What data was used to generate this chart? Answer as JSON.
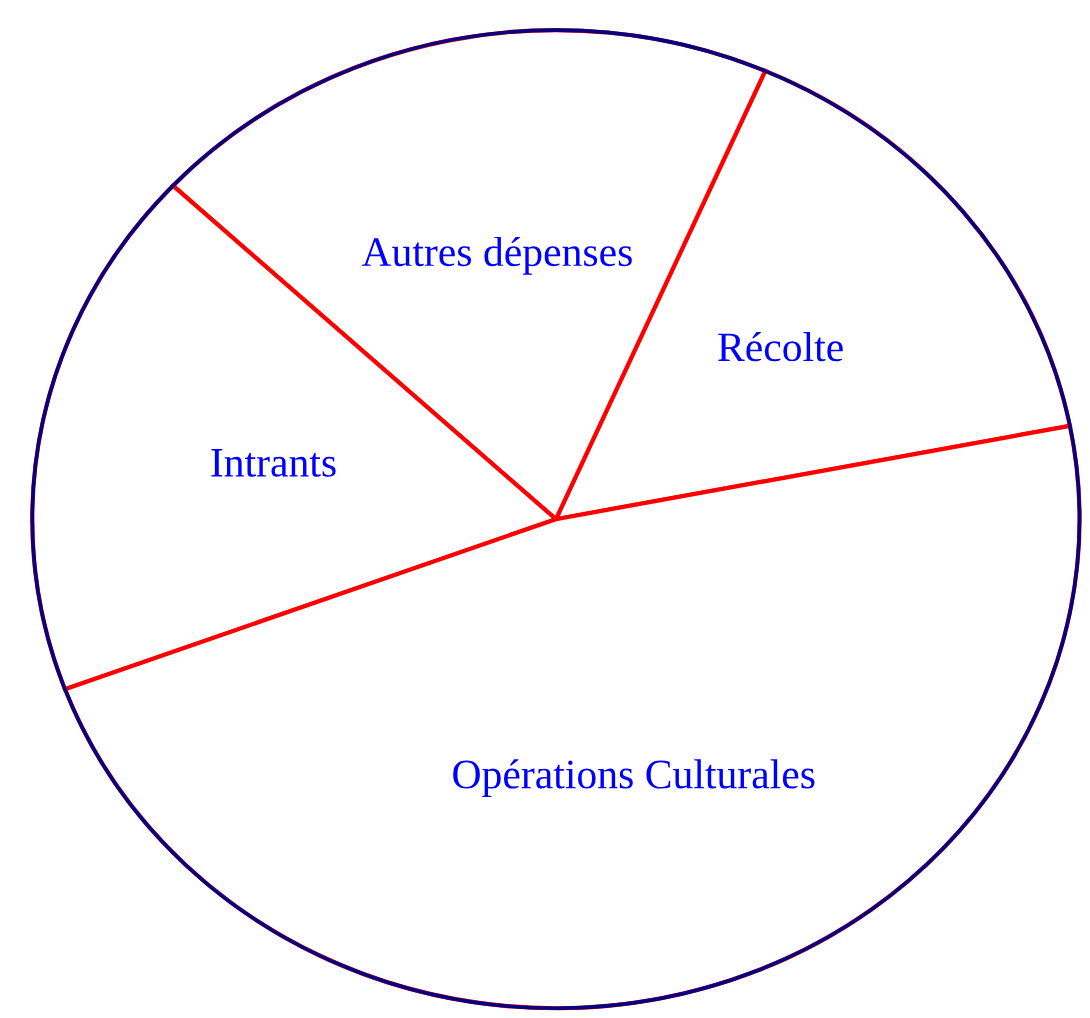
{
  "chart_data": {
    "type": "pie",
    "categories": [
      "Récolte",
      "Autres dépenses",
      "Intrants",
      "Opérations Culturales"
    ],
    "values": [
      15.4,
      19.6,
      17.6,
      47.4
    ],
    "colors": [
      "#ffffff",
      "#ffffff",
      "#ffffff",
      "#ffffff"
    ]
  }
}
